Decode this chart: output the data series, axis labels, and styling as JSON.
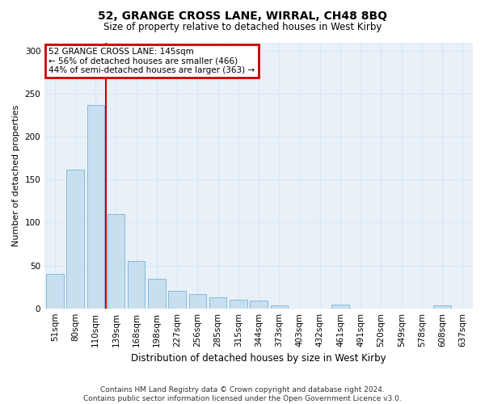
{
  "title": "52, GRANGE CROSS LANE, WIRRAL, CH48 8BQ",
  "subtitle": "Size of property relative to detached houses in West Kirby",
  "xlabel": "Distribution of detached houses by size in West Kirby",
  "ylabel": "Number of detached properties",
  "categories": [
    "51sqm",
    "80sqm",
    "110sqm",
    "139sqm",
    "168sqm",
    "198sqm",
    "227sqm",
    "256sqm",
    "285sqm",
    "315sqm",
    "344sqm",
    "373sqm",
    "403sqm",
    "432sqm",
    "461sqm",
    "491sqm",
    "520sqm",
    "549sqm",
    "578sqm",
    "608sqm",
    "637sqm"
  ],
  "values": [
    40,
    162,
    237,
    110,
    55,
    35,
    20,
    17,
    13,
    10,
    9,
    3,
    0,
    0,
    4,
    0,
    0,
    0,
    0,
    3,
    0
  ],
  "bar_color": "#c8dff0",
  "bar_edge_color": "#7ab4d8",
  "grid_color": "#d8e8f4",
  "background_color": "#e8f0f8",
  "vline_x": 2.5,
  "annotation_text": "52 GRANGE CROSS LANE: 145sqm\n← 56% of detached houses are smaller (466)\n44% of semi-detached houses are larger (363) →",
  "annotation_box_color": "#cc0000",
  "vline_color": "#cc0000",
  "footer_line1": "Contains HM Land Registry data © Crown copyright and database right 2024.",
  "footer_line2": "Contains public sector information licensed under the Open Government Licence v3.0.",
  "ylim": [
    0,
    310
  ],
  "yticks": [
    0,
    50,
    100,
    150,
    200,
    250,
    300
  ],
  "title_fontsize": 10,
  "subtitle_fontsize": 8.5,
  "ylabel_fontsize": 8,
  "xlabel_fontsize": 8.5,
  "tick_fontsize": 7.5,
  "footer_fontsize": 6.5,
  "ann_fontsize": 7.5
}
